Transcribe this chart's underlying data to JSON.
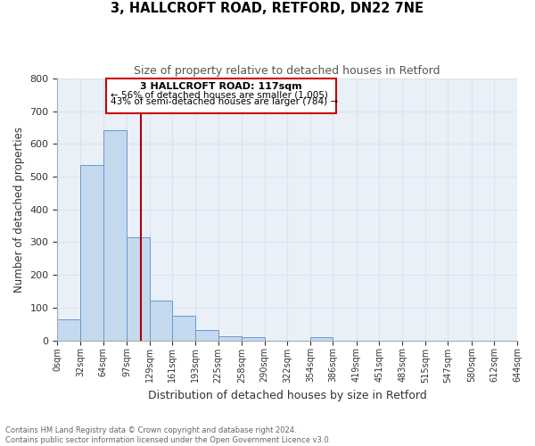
{
  "title1": "3, HALLCROFT ROAD, RETFORD, DN22 7NE",
  "title2": "Size of property relative to detached houses in Retford",
  "xlabel": "Distribution of detached houses by size in Retford",
  "ylabel": "Number of detached properties",
  "bar_left_edges": [
    0,
    32,
    64,
    97,
    129,
    161,
    193,
    225,
    258,
    290,
    322,
    354,
    386,
    419,
    451,
    483,
    515,
    547,
    580,
    612
  ],
  "bar_heights": [
    65,
    537,
    641,
    316,
    121,
    76,
    32,
    12,
    9,
    0,
    0,
    9,
    0,
    0,
    0,
    0,
    0,
    0,
    0,
    0
  ],
  "bar_widths": [
    32,
    32,
    33,
    32,
    32,
    32,
    32,
    33,
    32,
    32,
    32,
    32,
    33,
    32,
    32,
    32,
    32,
    33,
    32,
    32
  ],
  "bar_color": "#c5d9ee",
  "bar_edge_color": "#6699cc",
  "property_line_x": 117,
  "ylim": [
    0,
    800
  ],
  "yticks": [
    0,
    100,
    200,
    300,
    400,
    500,
    600,
    700,
    800
  ],
  "xtick_labels": [
    "0sqm",
    "32sqm",
    "64sqm",
    "97sqm",
    "129sqm",
    "161sqm",
    "193sqm",
    "225sqm",
    "258sqm",
    "290sqm",
    "322sqm",
    "354sqm",
    "386sqm",
    "419sqm",
    "451sqm",
    "483sqm",
    "515sqm",
    "547sqm",
    "580sqm",
    "612sqm",
    "644sqm"
  ],
  "xtick_positions": [
    0,
    32,
    64,
    97,
    129,
    161,
    193,
    225,
    258,
    290,
    322,
    354,
    386,
    419,
    451,
    483,
    515,
    547,
    580,
    612,
    644
  ],
  "annotation_title": "3 HALLCROFT ROAD: 117sqm",
  "annotation_line1": "← 56% of detached houses are smaller (1,005)",
  "annotation_line2": "43% of semi-detached houses are larger (784) →",
  "footnote1": "Contains HM Land Registry data © Crown copyright and database right 2024.",
  "footnote2": "Contains public sector information licensed under the Open Government Licence v3.0.",
  "line_color": "#aa0000",
  "grid_color": "#d8e4f0",
  "background_color": "#eaf0f8"
}
